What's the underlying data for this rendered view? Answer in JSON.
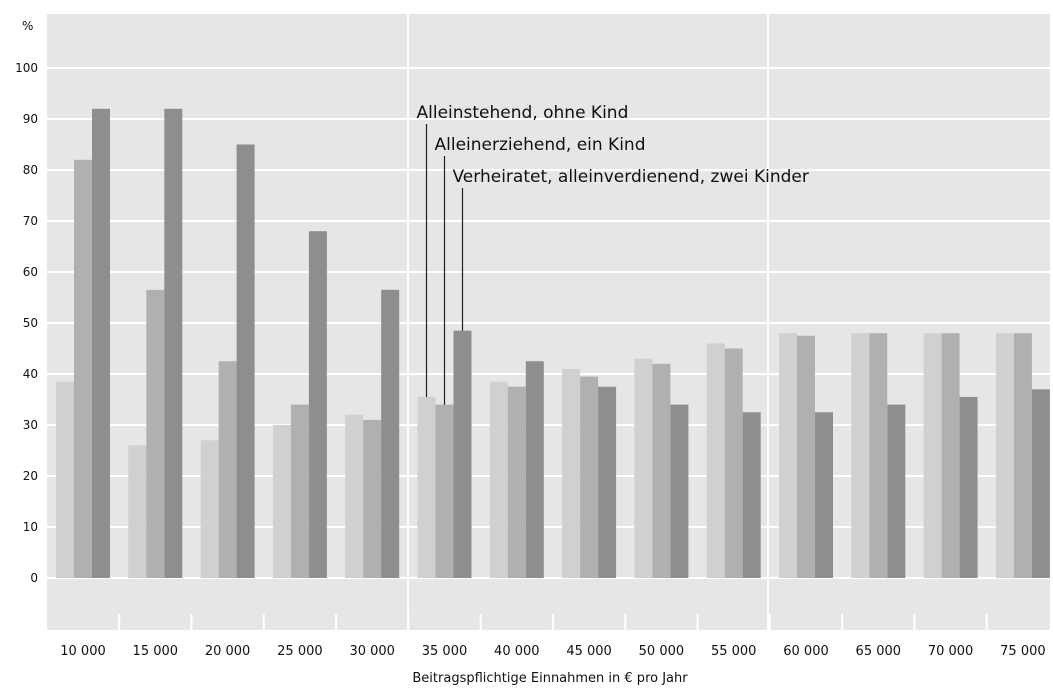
{
  "chart_data": {
    "type": "bar",
    "y_unit": "%",
    "xlabel": "Beitragspflichtige Einnahmen in € pro Jahr",
    "ylabel": "",
    "ylim": [
      0,
      100
    ],
    "y_ticks": [
      "0",
      "10",
      "20",
      "30",
      "40",
      "50",
      "60",
      "70",
      "80",
      "90",
      "100"
    ],
    "categories": [
      "10 000",
      "15 000",
      "20 000",
      "25 000",
      "30 000",
      "35 000",
      "40 000",
      "45 000",
      "50 000",
      "55 000",
      "60 000",
      "65 000",
      "70 000",
      "75 000"
    ],
    "series": [
      {
        "name": "Alleinstehend, ohne Kind",
        "color": "#d0d0d0",
        "values": [
          38.5,
          26,
          27,
          30,
          32,
          35.5,
          38.5,
          41,
          43,
          46,
          48,
          48,
          48,
          48
        ]
      },
      {
        "name": "Alleinerziehend, ein Kind",
        "color": "#b0b0b0",
        "values": [
          82,
          56.5,
          42.5,
          34,
          31,
          34,
          37.5,
          39.5,
          42,
          45,
          47.5,
          48,
          48,
          48
        ]
      },
      {
        "name": "Verheiratet, alleinverdienend, zwei Kinder",
        "color": "#8e8e8e",
        "values": [
          92,
          92,
          85,
          68,
          56.5,
          48.5,
          42.5,
          37.5,
          34,
          32.5,
          32.5,
          34,
          35.5,
          37
        ]
      }
    ],
    "grid": true,
    "legend_placement": "annotations above the 35 000 bar group"
  }
}
